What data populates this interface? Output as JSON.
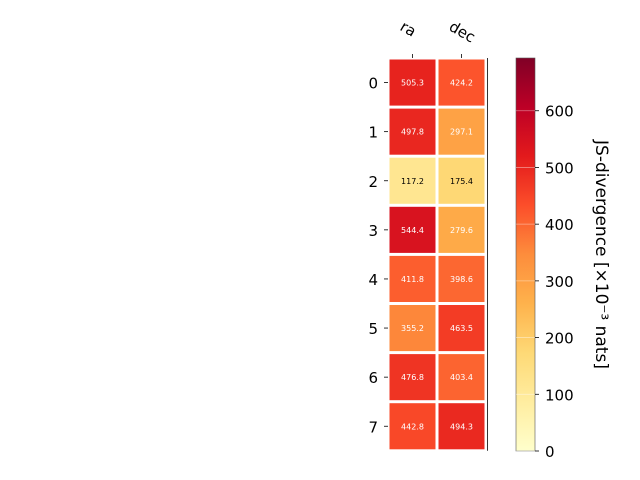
{
  "chart_data": {
    "type": "heatmap",
    "columns": [
      "ra",
      "dec"
    ],
    "rows": [
      "0",
      "1",
      "2",
      "3",
      "4",
      "5",
      "6",
      "7"
    ],
    "values": [
      [
        505.3,
        424.2
      ],
      [
        497.8,
        297.1
      ],
      [
        117.2,
        175.4
      ],
      [
        544.4,
        279.6
      ],
      [
        411.8,
        398.6
      ],
      [
        355.2,
        463.5
      ],
      [
        476.8,
        403.4
      ],
      [
        442.8,
        494.3
      ]
    ],
    "colorbar": {
      "label": "JS-divergence [×10⁻³ nats]",
      "range": [
        0,
        693
      ],
      "ticks": [
        "0",
        "100",
        "200",
        "300",
        "400",
        "500",
        "600"
      ],
      "colormap": "YlOrRd"
    },
    "cell_label_colors": {
      "light": "#ffffff",
      "dark": "#000000"
    }
  }
}
